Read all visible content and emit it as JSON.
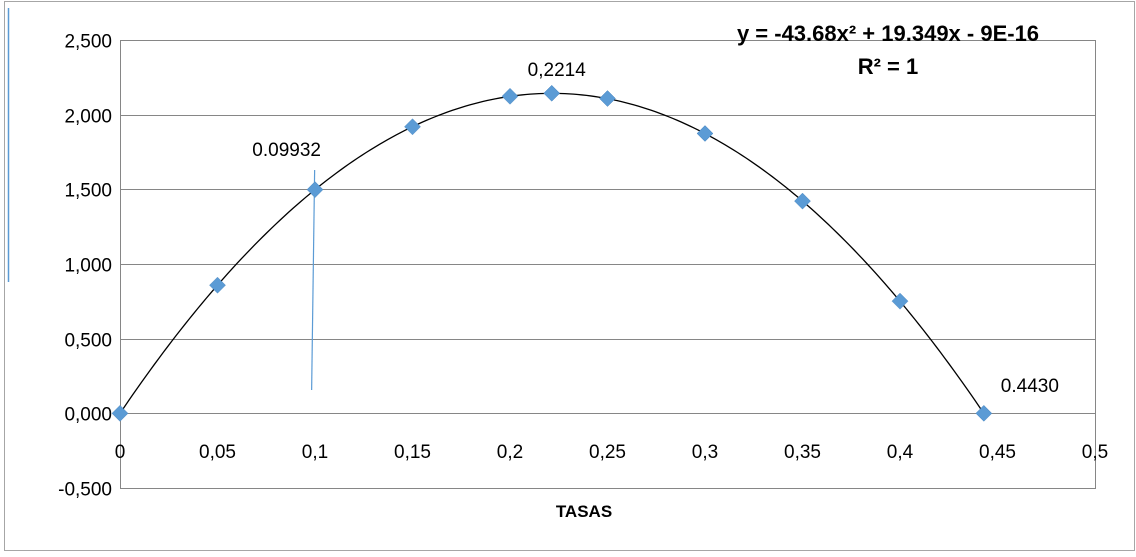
{
  "chart_data": {
    "type": "scatter",
    "title": "",
    "xlabel": "TASAS",
    "ylabel": "",
    "xlim": [
      0,
      0.5
    ],
    "ylim": [
      -0.5,
      2.5
    ],
    "grid": "horizontal",
    "x_ticks": [
      "0",
      "0,05",
      "0,1",
      "0,15",
      "0,2",
      "0,25",
      "0,3",
      "0,35",
      "0,4",
      "0,45",
      "0,5"
    ],
    "x_tick_values": [
      0,
      0.05,
      0.1,
      0.15,
      0.2,
      0.25,
      0.3,
      0.35,
      0.4,
      0.45,
      0.5
    ],
    "y_ticks": [
      "-0,500",
      "0,000",
      "0,500",
      "1,000",
      "1,500",
      "2,000",
      "2,500"
    ],
    "y_tick_values": [
      -0.5,
      0,
      0.5,
      1.0,
      1.5,
      2.0,
      2.5
    ],
    "series": [
      {
        "marker": "diamond",
        "color": "#5B9BD5",
        "points": [
          {
            "x": 0,
            "y": 0.0
          },
          {
            "x": 0.05,
            "y": 0.858
          },
          {
            "x": 0.1,
            "y": 1.498
          },
          {
            "x": 0.15,
            "y": 1.919
          },
          {
            "x": 0.2,
            "y": 2.123
          },
          {
            "x": 0.2214,
            "y": 2.143
          },
          {
            "x": 0.25,
            "y": 2.108
          },
          {
            "x": 0.3,
            "y": 1.874
          },
          {
            "x": 0.35,
            "y": 1.421
          },
          {
            "x": 0.4,
            "y": 0.751
          },
          {
            "x": 0.443,
            "y": 0.0
          }
        ]
      }
    ],
    "trendline": {
      "type": "polynomial",
      "coefficients": [
        -43.68,
        19.349,
        0
      ],
      "color": "#000000",
      "equation": "y = -43.68x² + 19.349x - 9E-16",
      "r_squared": "R² = 1"
    },
    "annotations": [
      {
        "text": "0.09932",
        "x": 0.0993
      },
      {
        "text": "0,2214",
        "x": 0.2214
      },
      {
        "text": "0.4430",
        "x": 0.443
      }
    ],
    "vertical_marker": {
      "x": 0.0993,
      "color": "#5B9BD5"
    }
  }
}
